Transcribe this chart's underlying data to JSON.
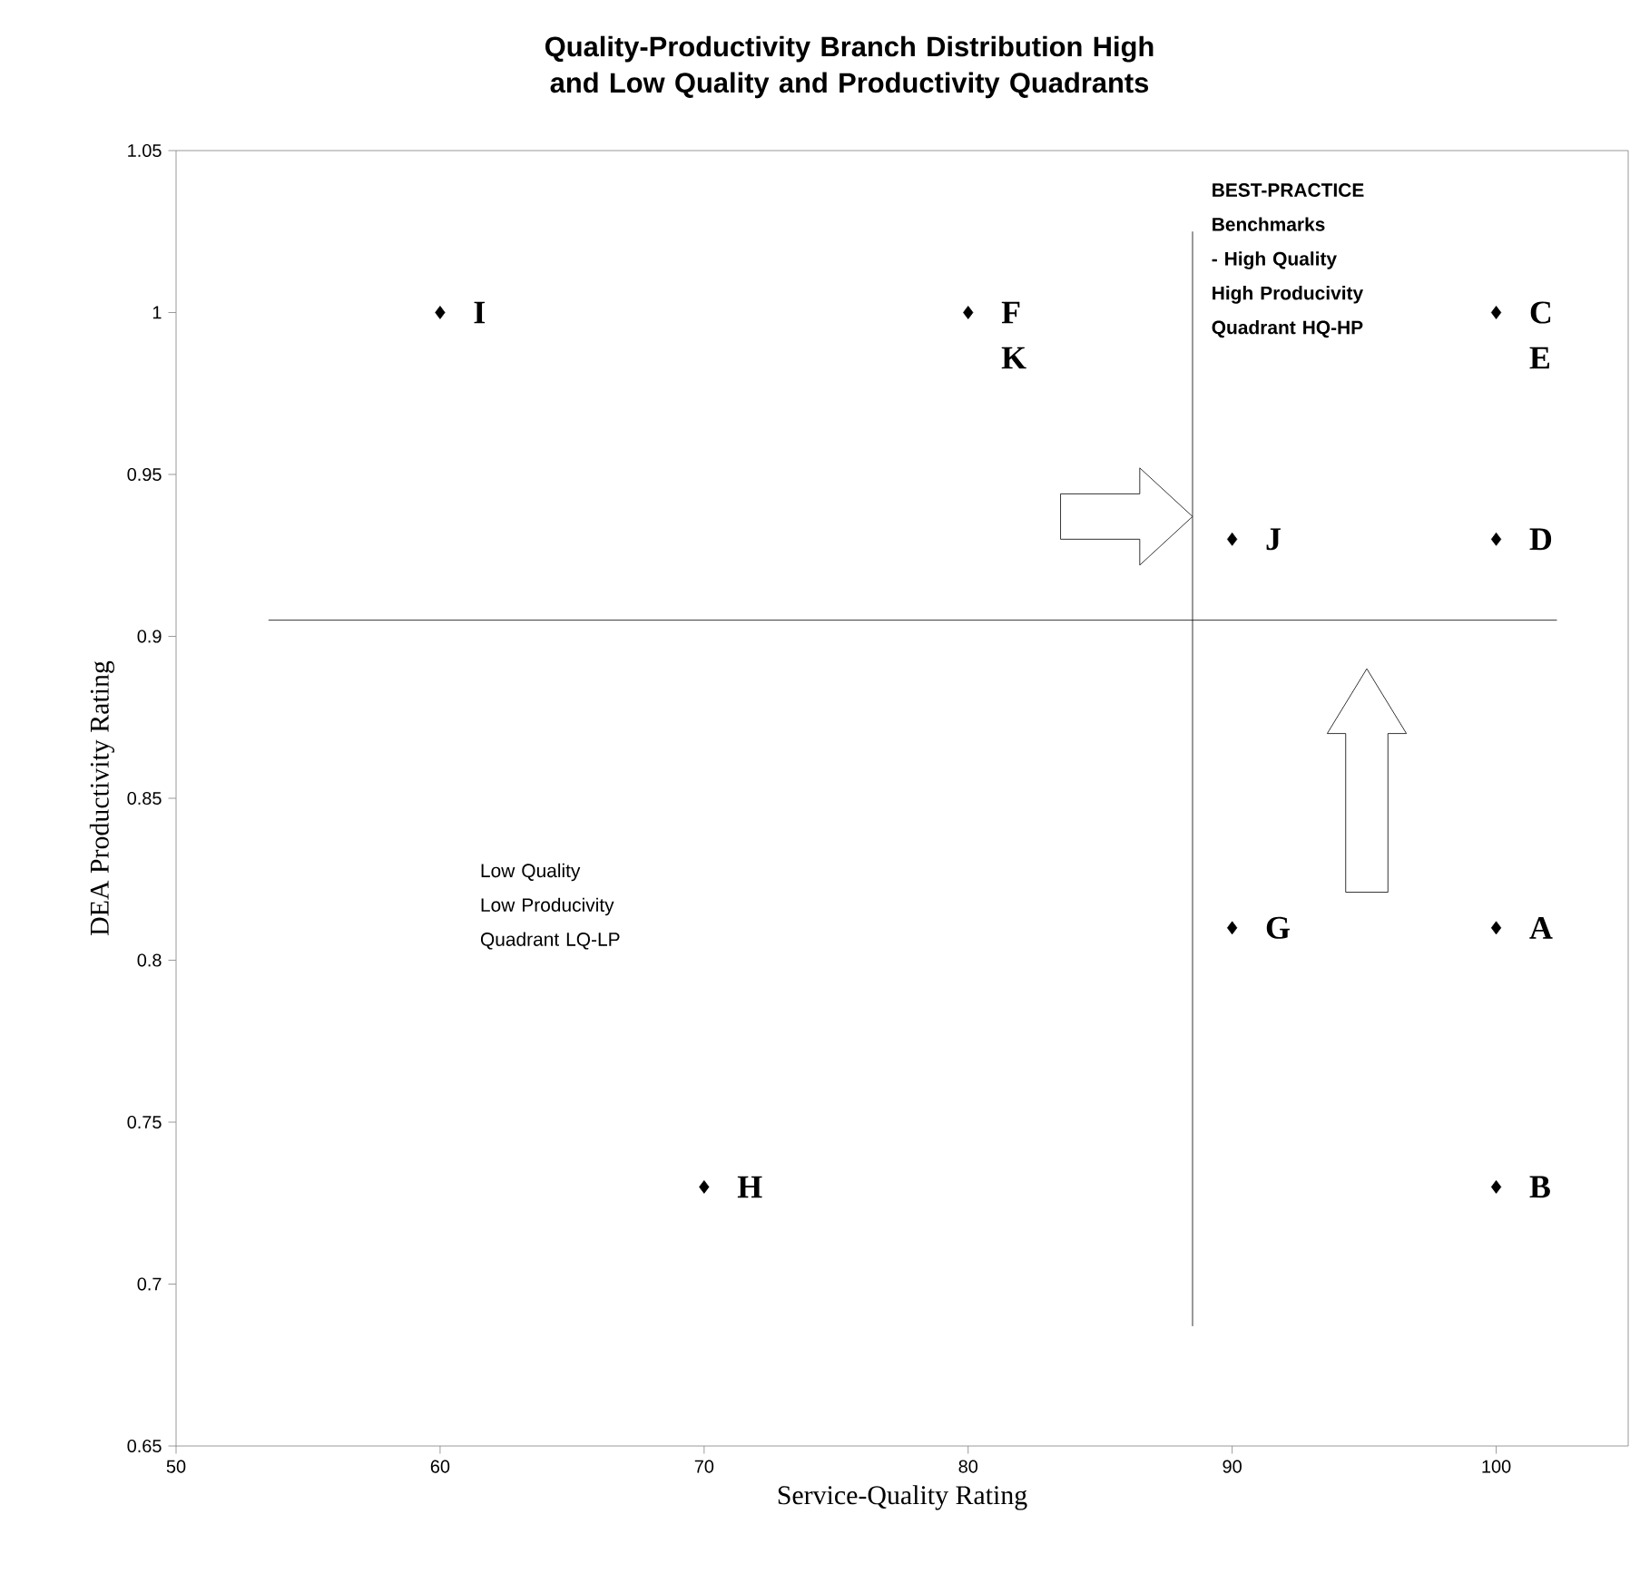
{
  "chart_data": {
    "type": "scatter",
    "title": "Quality-Productivity Branch Distribution High and Low  Quality and Productivity Quadrants",
    "xlabel": "Service-Quality Rating",
    "ylabel": "DEA Productivity Rating",
    "x": [
      60,
      80,
      100,
      90,
      100,
      90,
      100,
      70,
      100
    ],
    "values": [
      1,
      1,
      1,
      0.93,
      0.93,
      0.81,
      0.81,
      0.73,
      0.73
    ],
    "color": "#000000",
    "marker": "diamond",
    "grid": false,
    "xlim": [
      50,
      105
    ],
    "ylim": [
      0.65,
      1.05
    ],
    "xticks": [
      50,
      60,
      70,
      80,
      90,
      100
    ],
    "yticks": [
      0.65,
      0.7,
      0.75,
      0.8,
      0.85,
      0.9,
      0.95,
      1,
      1.05
    ],
    "ref_lines": [
      {
        "axis": "y",
        "value": 0.905
      },
      {
        "axis": "x",
        "value": 88.5
      }
    ],
    "annotations": [
      {
        "text": "I",
        "x": 60,
        "y": 1
      },
      {
        "text": "F",
        "x": 80,
        "y": 1
      },
      {
        "text": "K",
        "x": 80,
        "y": 1
      },
      {
        "text": "C",
        "x": 100,
        "y": 1
      },
      {
        "text": "E",
        "x": 100,
        "y": 1
      },
      {
        "text": "J",
        "x": 90,
        "y": 0.93
      },
      {
        "text": "D",
        "x": 100,
        "y": 0.93
      },
      {
        "text": "G",
        "x": 90,
        "y": 0.81
      },
      {
        "text": "A",
        "x": 100,
        "y": 0.81
      },
      {
        "text": "H",
        "x": 70,
        "y": 0.73
      },
      {
        "text": "B",
        "x": 100,
        "y": 0.73
      },
      "BEST-PRACTICE Benchmarks - High Quality High Producivity Quadrant HQ-HP",
      "Low Quality Low Producivity Quadrant LQ-LP"
    ]
  }
}
